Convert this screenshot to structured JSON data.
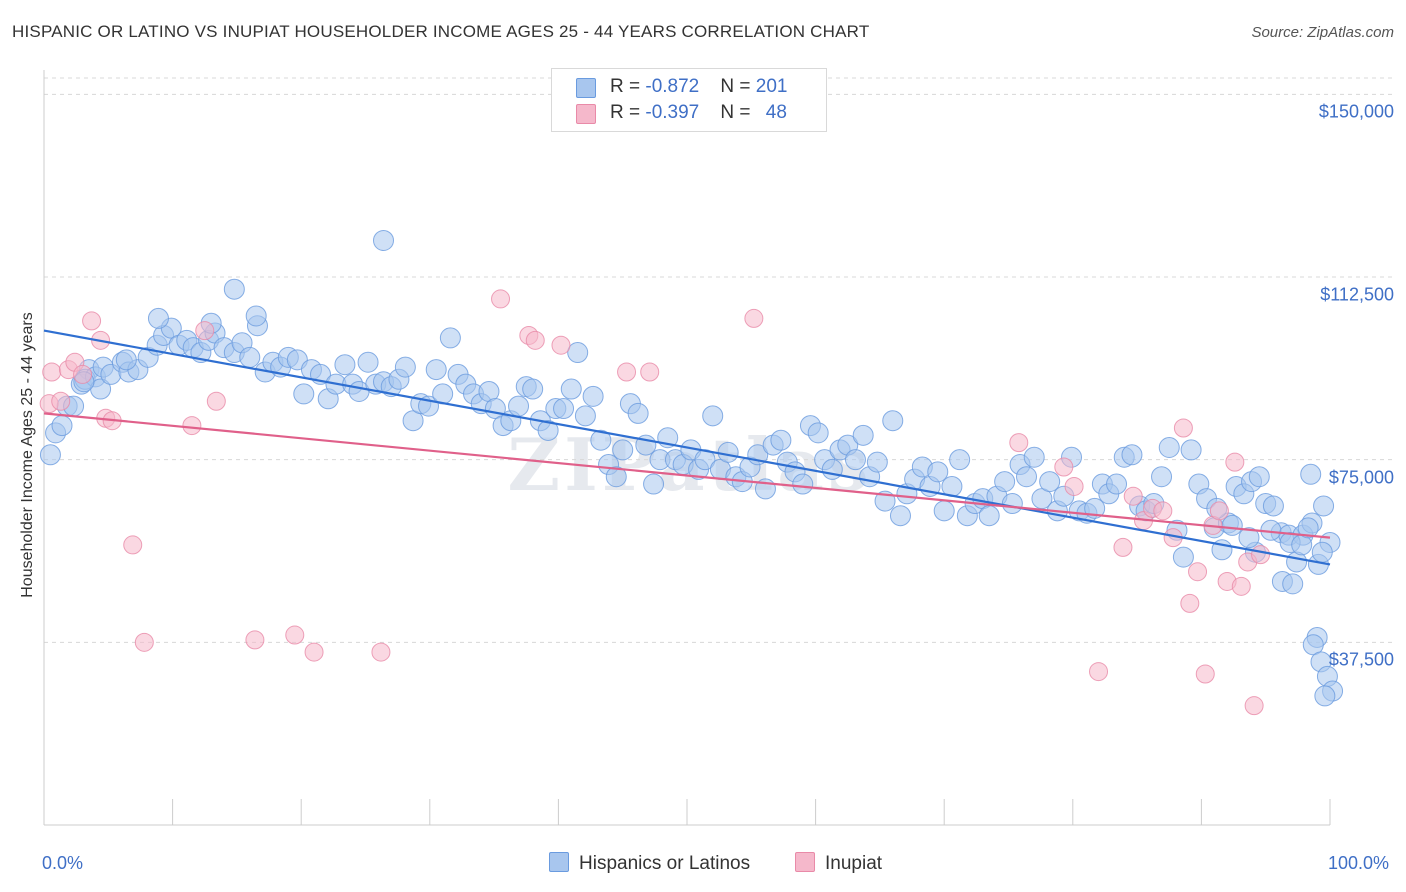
{
  "title": "HISPANIC OR LATINO VS INUPIAT HOUSEHOLDER INCOME AGES 25 - 44 YEARS CORRELATION CHART",
  "source": "Source: ZipAtlas.com",
  "watermark": "ZIPatlas",
  "legend_top": {
    "rows": [
      {
        "r_label": "R = ",
        "r_value": "-0.872",
        "n_label": "N = ",
        "n_value": "201",
        "color": "#a8c6ee"
      },
      {
        "r_label": "R = ",
        "r_value": "-0.397",
        "n_label": "N = ",
        "n_value": "48",
        "color": "#f5b8cb"
      }
    ]
  },
  "chart_data": {
    "type": "scatter",
    "title": "HISPANIC OR LATINO VS INUPIAT HOUSEHOLDER INCOME AGES 25 - 44 YEARS CORRELATION CHART",
    "xlabel": "",
    "ylabel": "Householder Income Ages 25 - 44 years",
    "xlim": [
      0,
      100
    ],
    "ylim": [
      0,
      155000
    ],
    "x_tick_labels": [
      "0.0%",
      "100.0%"
    ],
    "y_ticks": [
      {
        "value": 37500,
        "label": "$37,500"
      },
      {
        "value": 75000,
        "label": "$75,000"
      },
      {
        "value": 112500,
        "label": "$112,500"
      },
      {
        "value": 150000,
        "label": "$150,000"
      }
    ],
    "grid": true,
    "legend_position": "bottom",
    "series": [
      {
        "name": "Hispanics or Latinos",
        "color": "#6a9bdf",
        "fill": "#a8c6ee",
        "trendline": {
          "x": [
            0,
            100
          ],
          "y": [
            101500,
            53500
          ],
          "color": "#2f6fd1"
        },
        "points": [
          [
            0.5,
            76000
          ],
          [
            0.9,
            80500
          ],
          [
            1.4,
            82000
          ],
          [
            1.8,
            86000
          ],
          [
            2.3,
            86000
          ],
          [
            2.9,
            90500
          ],
          [
            3.5,
            93500
          ],
          [
            3.2,
            91500
          ],
          [
            4.0,
            92000
          ],
          [
            4.4,
            89500
          ],
          [
            4.6,
            94000
          ],
          [
            5.2,
            92500
          ],
          [
            6.1,
            95000
          ],
          [
            6.6,
            93000
          ],
          [
            7.3,
            93500
          ],
          [
            8.1,
            96000
          ],
          [
            8.8,
            98500
          ],
          [
            9.3,
            100500
          ],
          [
            9.9,
            102000
          ],
          [
            10.5,
            98500
          ],
          [
            11.1,
            99500
          ],
          [
            11.6,
            98000
          ],
          [
            12.2,
            97000
          ],
          [
            12.8,
            99500
          ],
          [
            13.3,
            101000
          ],
          [
            14.0,
            98000
          ],
          [
            14.8,
            97000
          ],
          [
            15.4,
            99000
          ],
          [
            16.0,
            96000
          ],
          [
            16.6,
            102500
          ],
          [
            17.2,
            93000
          ],
          [
            17.8,
            95000
          ],
          [
            18.4,
            94000
          ],
          [
            19.0,
            96000
          ],
          [
            19.7,
            95500
          ],
          [
            20.2,
            88500
          ],
          [
            20.8,
            93500
          ],
          [
            21.5,
            92500
          ],
          [
            22.1,
            87500
          ],
          [
            22.7,
            90500
          ],
          [
            23.4,
            94500
          ],
          [
            24.0,
            90500
          ],
          [
            24.5,
            89000
          ],
          [
            25.2,
            95000
          ],
          [
            25.8,
            90500
          ],
          [
            26.4,
            91000
          ],
          [
            27.0,
            90000
          ],
          [
            27.6,
            91500
          ],
          [
            28.1,
            94000
          ],
          [
            28.7,
            83000
          ],
          [
            29.3,
            86500
          ],
          [
            29.9,
            86000
          ],
          [
            30.5,
            93500
          ],
          [
            31.0,
            88500
          ],
          [
            31.6,
            100000
          ],
          [
            32.2,
            92500
          ],
          [
            32.8,
            90500
          ],
          [
            33.4,
            88500
          ],
          [
            34.0,
            86500
          ],
          [
            34.6,
            89000
          ],
          [
            35.1,
            85500
          ],
          [
            35.7,
            82000
          ],
          [
            36.3,
            83000
          ],
          [
            36.9,
            86000
          ],
          [
            37.5,
            90000
          ],
          [
            38.0,
            89500
          ],
          [
            38.6,
            83000
          ],
          [
            39.2,
            81000
          ],
          [
            39.8,
            85500
          ],
          [
            40.4,
            85500
          ],
          [
            41.0,
            89500
          ],
          [
            41.5,
            97000
          ],
          [
            42.1,
            84000
          ],
          [
            42.7,
            88000
          ],
          [
            43.3,
            79000
          ],
          [
            43.9,
            74000
          ],
          [
            44.5,
            71500
          ],
          [
            45.0,
            77000
          ],
          [
            45.6,
            86500
          ],
          [
            46.2,
            84500
          ],
          [
            46.8,
            78000
          ],
          [
            47.4,
            70000
          ],
          [
            47.9,
            75000
          ],
          [
            48.5,
            79500
          ],
          [
            49.1,
            75000
          ],
          [
            49.7,
            74000
          ],
          [
            50.3,
            77000
          ],
          [
            50.9,
            73000
          ],
          [
            51.4,
            75000
          ],
          [
            52.0,
            84000
          ],
          [
            52.6,
            73000
          ],
          [
            53.2,
            76500
          ],
          [
            53.8,
            71500
          ],
          [
            54.3,
            70500
          ],
          [
            54.9,
            73500
          ],
          [
            55.5,
            76000
          ],
          [
            56.1,
            69000
          ],
          [
            56.7,
            78000
          ],
          [
            57.3,
            79000
          ],
          [
            57.8,
            74500
          ],
          [
            58.4,
            72500
          ],
          [
            59.0,
            70000
          ],
          [
            59.6,
            82000
          ],
          [
            60.2,
            80500
          ],
          [
            60.7,
            75000
          ],
          [
            61.3,
            73000
          ],
          [
            61.9,
            77000
          ],
          [
            62.5,
            78000
          ],
          [
            63.1,
            75000
          ],
          [
            63.7,
            80000
          ],
          [
            64.2,
            71500
          ],
          [
            64.8,
            74500
          ],
          [
            65.4,
            66500
          ],
          [
            66.0,
            83000
          ],
          [
            66.6,
            63500
          ],
          [
            67.1,
            68000
          ],
          [
            67.7,
            71000
          ],
          [
            68.3,
            73500
          ],
          [
            68.9,
            69500
          ],
          [
            69.5,
            72500
          ],
          [
            70.0,
            64500
          ],
          [
            70.6,
            69500
          ],
          [
            71.2,
            75000
          ],
          [
            71.8,
            63500
          ],
          [
            72.4,
            66000
          ],
          [
            73.0,
            67000
          ],
          [
            73.5,
            63500
          ],
          [
            74.1,
            67500
          ],
          [
            74.7,
            70500
          ],
          [
            75.3,
            66000
          ],
          [
            75.9,
            74000
          ],
          [
            76.4,
            71500
          ],
          [
            77.0,
            75500
          ],
          [
            77.6,
            67000
          ],
          [
            78.2,
            70500
          ],
          [
            78.8,
            64500
          ],
          [
            79.3,
            67500
          ],
          [
            79.9,
            75500
          ],
          [
            80.5,
            64500
          ],
          [
            81.1,
            64000
          ],
          [
            81.7,
            65000
          ],
          [
            82.3,
            70000
          ],
          [
            82.8,
            68000
          ],
          [
            83.4,
            70000
          ],
          [
            84.0,
            75500
          ],
          [
            84.6,
            76000
          ],
          [
            85.2,
            65500
          ],
          [
            85.7,
            64500
          ],
          [
            86.3,
            66000
          ],
          [
            86.9,
            71500
          ],
          [
            87.5,
            77500
          ],
          [
            88.1,
            60500
          ],
          [
            88.6,
            55000
          ],
          [
            89.2,
            77000
          ],
          [
            89.8,
            70000
          ],
          [
            90.4,
            67000
          ],
          [
            91.0,
            61000
          ],
          [
            91.6,
            56500
          ],
          [
            92.1,
            62000
          ],
          [
            92.7,
            69500
          ],
          [
            93.3,
            68000
          ],
          [
            93.9,
            70500
          ],
          [
            94.5,
            71500
          ],
          [
            95.0,
            66000
          ],
          [
            95.6,
            65500
          ],
          [
            96.2,
            60000
          ],
          [
            96.8,
            59500
          ],
          [
            97.4,
            54000
          ],
          [
            97.9,
            59500
          ],
          [
            98.5,
            72000
          ],
          [
            99.1,
            53500
          ],
          [
            99.5,
            65500
          ],
          [
            100.0,
            58000
          ],
          [
            94.2,
            56000
          ],
          [
            95.4,
            60500
          ],
          [
            96.9,
            58000
          ],
          [
            97.8,
            57500
          ],
          [
            98.6,
            62000
          ],
          [
            99.4,
            56000
          ],
          [
            91.2,
            65000
          ],
          [
            92.4,
            61500
          ],
          [
            93.7,
            59000
          ],
          [
            96.3,
            50000
          ],
          [
            97.1,
            49500
          ],
          [
            98.3,
            61000
          ],
          [
            99.0,
            38500
          ],
          [
            98.7,
            37000
          ],
          [
            99.3,
            33500
          ],
          [
            99.8,
            30500
          ],
          [
            100.2,
            27500
          ],
          [
            99.6,
            26500
          ],
          [
            26.4,
            120000
          ],
          [
            3.1,
            91000
          ],
          [
            6.4,
            95500
          ],
          [
            8.9,
            104000
          ],
          [
            14.8,
            110000
          ],
          [
            16.5,
            104500
          ],
          [
            13.0,
            103000
          ]
        ]
      },
      {
        "name": "Inupiat",
        "color": "#e98aa8",
        "fill": "#f5b8cb",
        "trendline": {
          "x": [
            0,
            100
          ],
          "y": [
            84500,
            59000
          ],
          "color": "#e0608a"
        },
        "points": [
          [
            0.4,
            86500
          ],
          [
            0.6,
            93000
          ],
          [
            1.3,
            87000
          ],
          [
            1.9,
            93500
          ],
          [
            2.4,
            95000
          ],
          [
            3.0,
            92500
          ],
          [
            3.7,
            103500
          ],
          [
            4.4,
            99500
          ],
          [
            4.8,
            83500
          ],
          [
            5.3,
            83000
          ],
          [
            6.9,
            57500
          ],
          [
            7.8,
            37500
          ],
          [
            11.5,
            82000
          ],
          [
            12.5,
            101500
          ],
          [
            13.4,
            87000
          ],
          [
            16.4,
            38000
          ],
          [
            19.5,
            39000
          ],
          [
            21.0,
            35500
          ],
          [
            26.2,
            35500
          ],
          [
            35.5,
            108000
          ],
          [
            37.7,
            100500
          ],
          [
            38.2,
            99500
          ],
          [
            40.2,
            98500
          ],
          [
            45.3,
            93000
          ],
          [
            47.1,
            93000
          ],
          [
            55.2,
            104000
          ],
          [
            75.8,
            78500
          ],
          [
            79.3,
            73500
          ],
          [
            80.1,
            69500
          ],
          [
            82.0,
            31500
          ],
          [
            83.9,
            57000
          ],
          [
            84.7,
            67500
          ],
          [
            85.5,
            62500
          ],
          [
            86.2,
            65000
          ],
          [
            87.0,
            64500
          ],
          [
            87.8,
            59000
          ],
          [
            88.6,
            81500
          ],
          [
            89.1,
            45500
          ],
          [
            89.7,
            52000
          ],
          [
            90.3,
            31000
          ],
          [
            90.9,
            61500
          ],
          [
            91.4,
            64500
          ],
          [
            92.0,
            50000
          ],
          [
            92.6,
            74500
          ],
          [
            93.1,
            49000
          ],
          [
            93.6,
            54000
          ],
          [
            94.1,
            24500
          ],
          [
            94.6,
            55500
          ]
        ]
      }
    ]
  },
  "bottom_legend": [
    {
      "label": "Hispanics or Latinos",
      "color": "#a8c6ee"
    },
    {
      "label": "Inupiat",
      "color": "#f5b8cb"
    }
  ]
}
